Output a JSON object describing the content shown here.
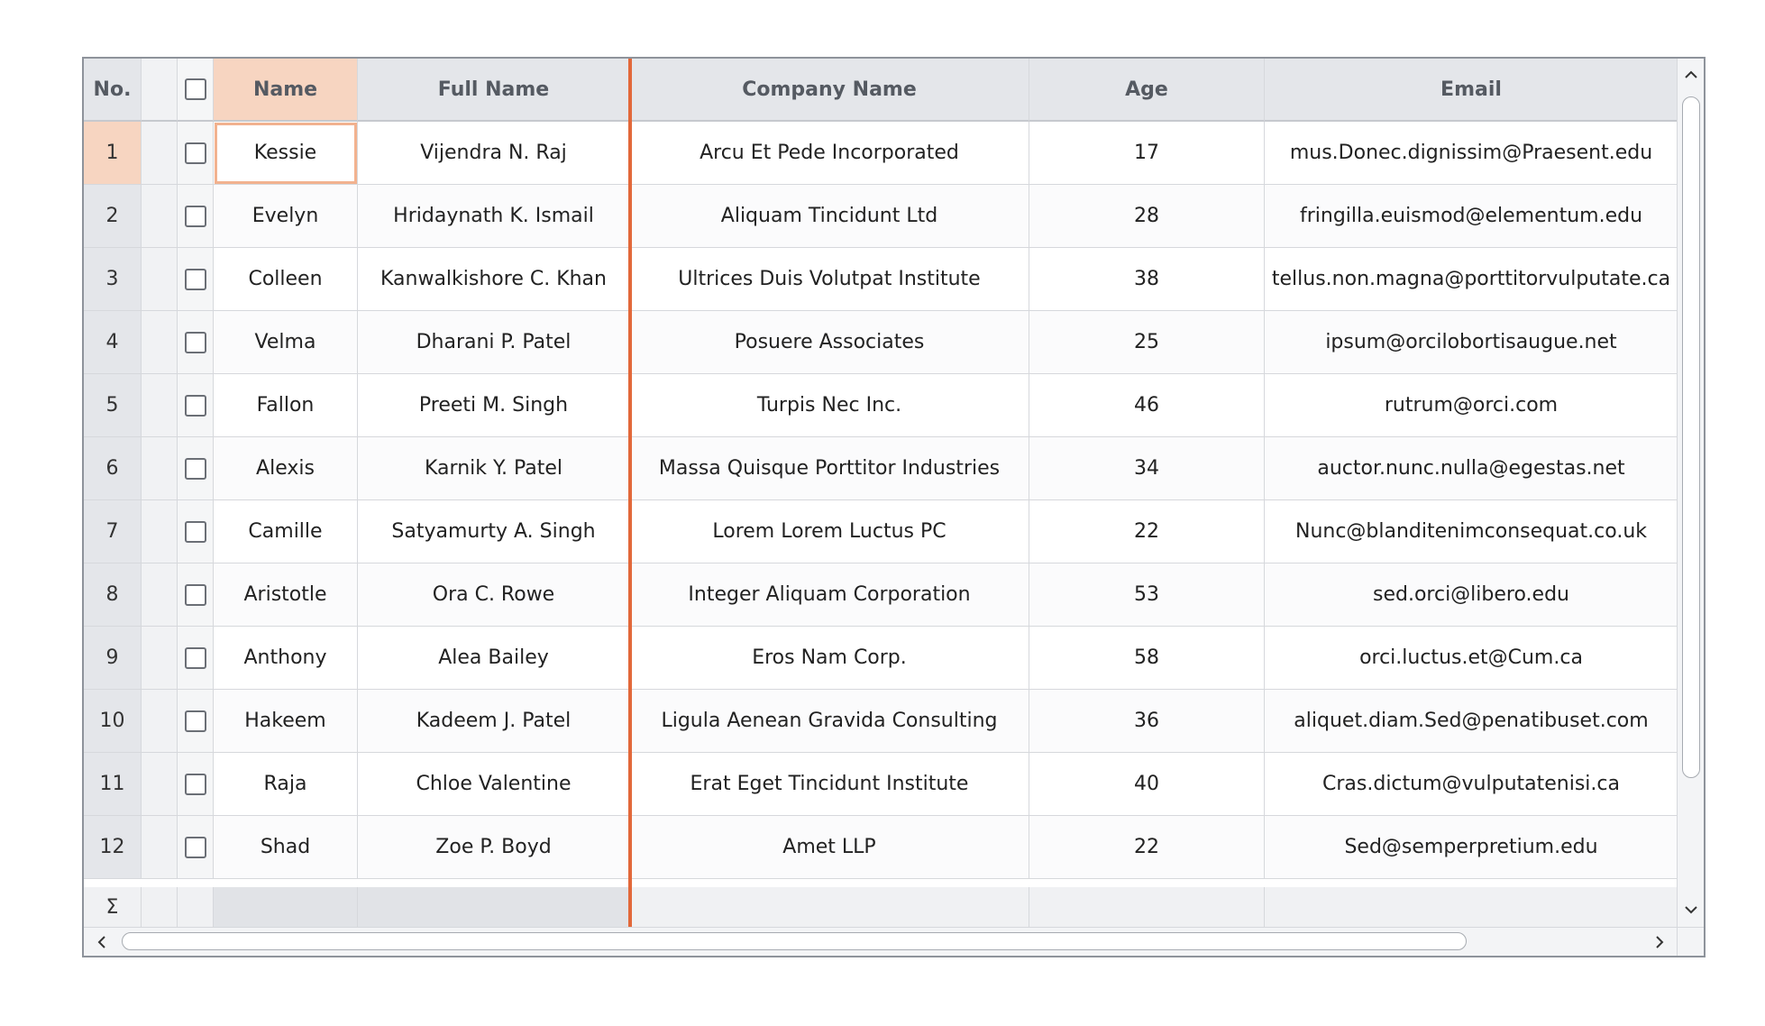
{
  "header": {
    "no": "No.",
    "name": "Name",
    "full_name": "Full Name",
    "company": "Company Name",
    "age": "Age",
    "email": "Email"
  },
  "rows": [
    {
      "no": "1",
      "name": "Kessie",
      "full": "Vijendra N. Raj",
      "company": "Arcu Et Pede Incorporated",
      "age": "17",
      "email": "mus.Donec.dignissim@Praesent.edu"
    },
    {
      "no": "2",
      "name": "Evelyn",
      "full": "Hridaynath K. Ismail",
      "company": "Aliquam Tincidunt Ltd",
      "age": "28",
      "email": "fringilla.euismod@elementum.edu"
    },
    {
      "no": "3",
      "name": "Colleen",
      "full": "Kanwalkishore C. Khan",
      "company": "Ultrices Duis Volutpat Institute",
      "age": "38",
      "email": "tellus.non.magna@porttitorvulputate.ca"
    },
    {
      "no": "4",
      "name": "Velma",
      "full": "Dharani P. Patel",
      "company": "Posuere Associates",
      "age": "25",
      "email": "ipsum@orcilobortisaugue.net"
    },
    {
      "no": "5",
      "name": "Fallon",
      "full": "Preeti M. Singh",
      "company": "Turpis Nec Inc.",
      "age": "46",
      "email": "rutrum@orci.com"
    },
    {
      "no": "6",
      "name": "Alexis",
      "full": "Karnik Y. Patel",
      "company": "Massa Quisque Porttitor Industries",
      "age": "34",
      "email": "auctor.nunc.nulla@egestas.net"
    },
    {
      "no": "7",
      "name": "Camille",
      "full": "Satyamurty A. Singh",
      "company": "Lorem Lorem Luctus PC",
      "age": "22",
      "email": "Nunc@blanditenimconsequat.co.uk"
    },
    {
      "no": "8",
      "name": "Aristotle",
      "full": "Ora C. Rowe",
      "company": "Integer Aliquam Corporation",
      "age": "53",
      "email": "sed.orci@libero.edu"
    },
    {
      "no": "9",
      "name": "Anthony",
      "full": "Alea Bailey",
      "company": "Eros Nam Corp.",
      "age": "58",
      "email": "orci.luctus.et@Cum.ca"
    },
    {
      "no": "10",
      "name": "Hakeem",
      "full": "Kadeem J. Patel",
      "company": "Ligula Aenean Gravida Consulting",
      "age": "36",
      "email": "aliquet.diam.Sed@penatibuset.com"
    },
    {
      "no": "11",
      "name": "Raja",
      "full": "Chloe Valentine",
      "company": "Erat Eget Tincidunt Institute",
      "age": "40",
      "email": "Cras.dictum@vulputatenisi.ca"
    },
    {
      "no": "12",
      "name": "Shad",
      "full": "Zoe P. Boyd",
      "company": "Amet LLP",
      "age": "22",
      "email": "Sed@semperpretium.edu"
    }
  ],
  "summary": {
    "symbol": "Σ"
  },
  "selected_row": "1",
  "focused_cell": "Kessie",
  "colors": {
    "accent": "#e2683a",
    "selected": "#f7d5c1",
    "header": "#e4e6ea"
  },
  "icons": [
    "checkbox-icon",
    "chevron-up-icon",
    "chevron-down-icon",
    "chevron-left-icon",
    "chevron-right-icon"
  ]
}
